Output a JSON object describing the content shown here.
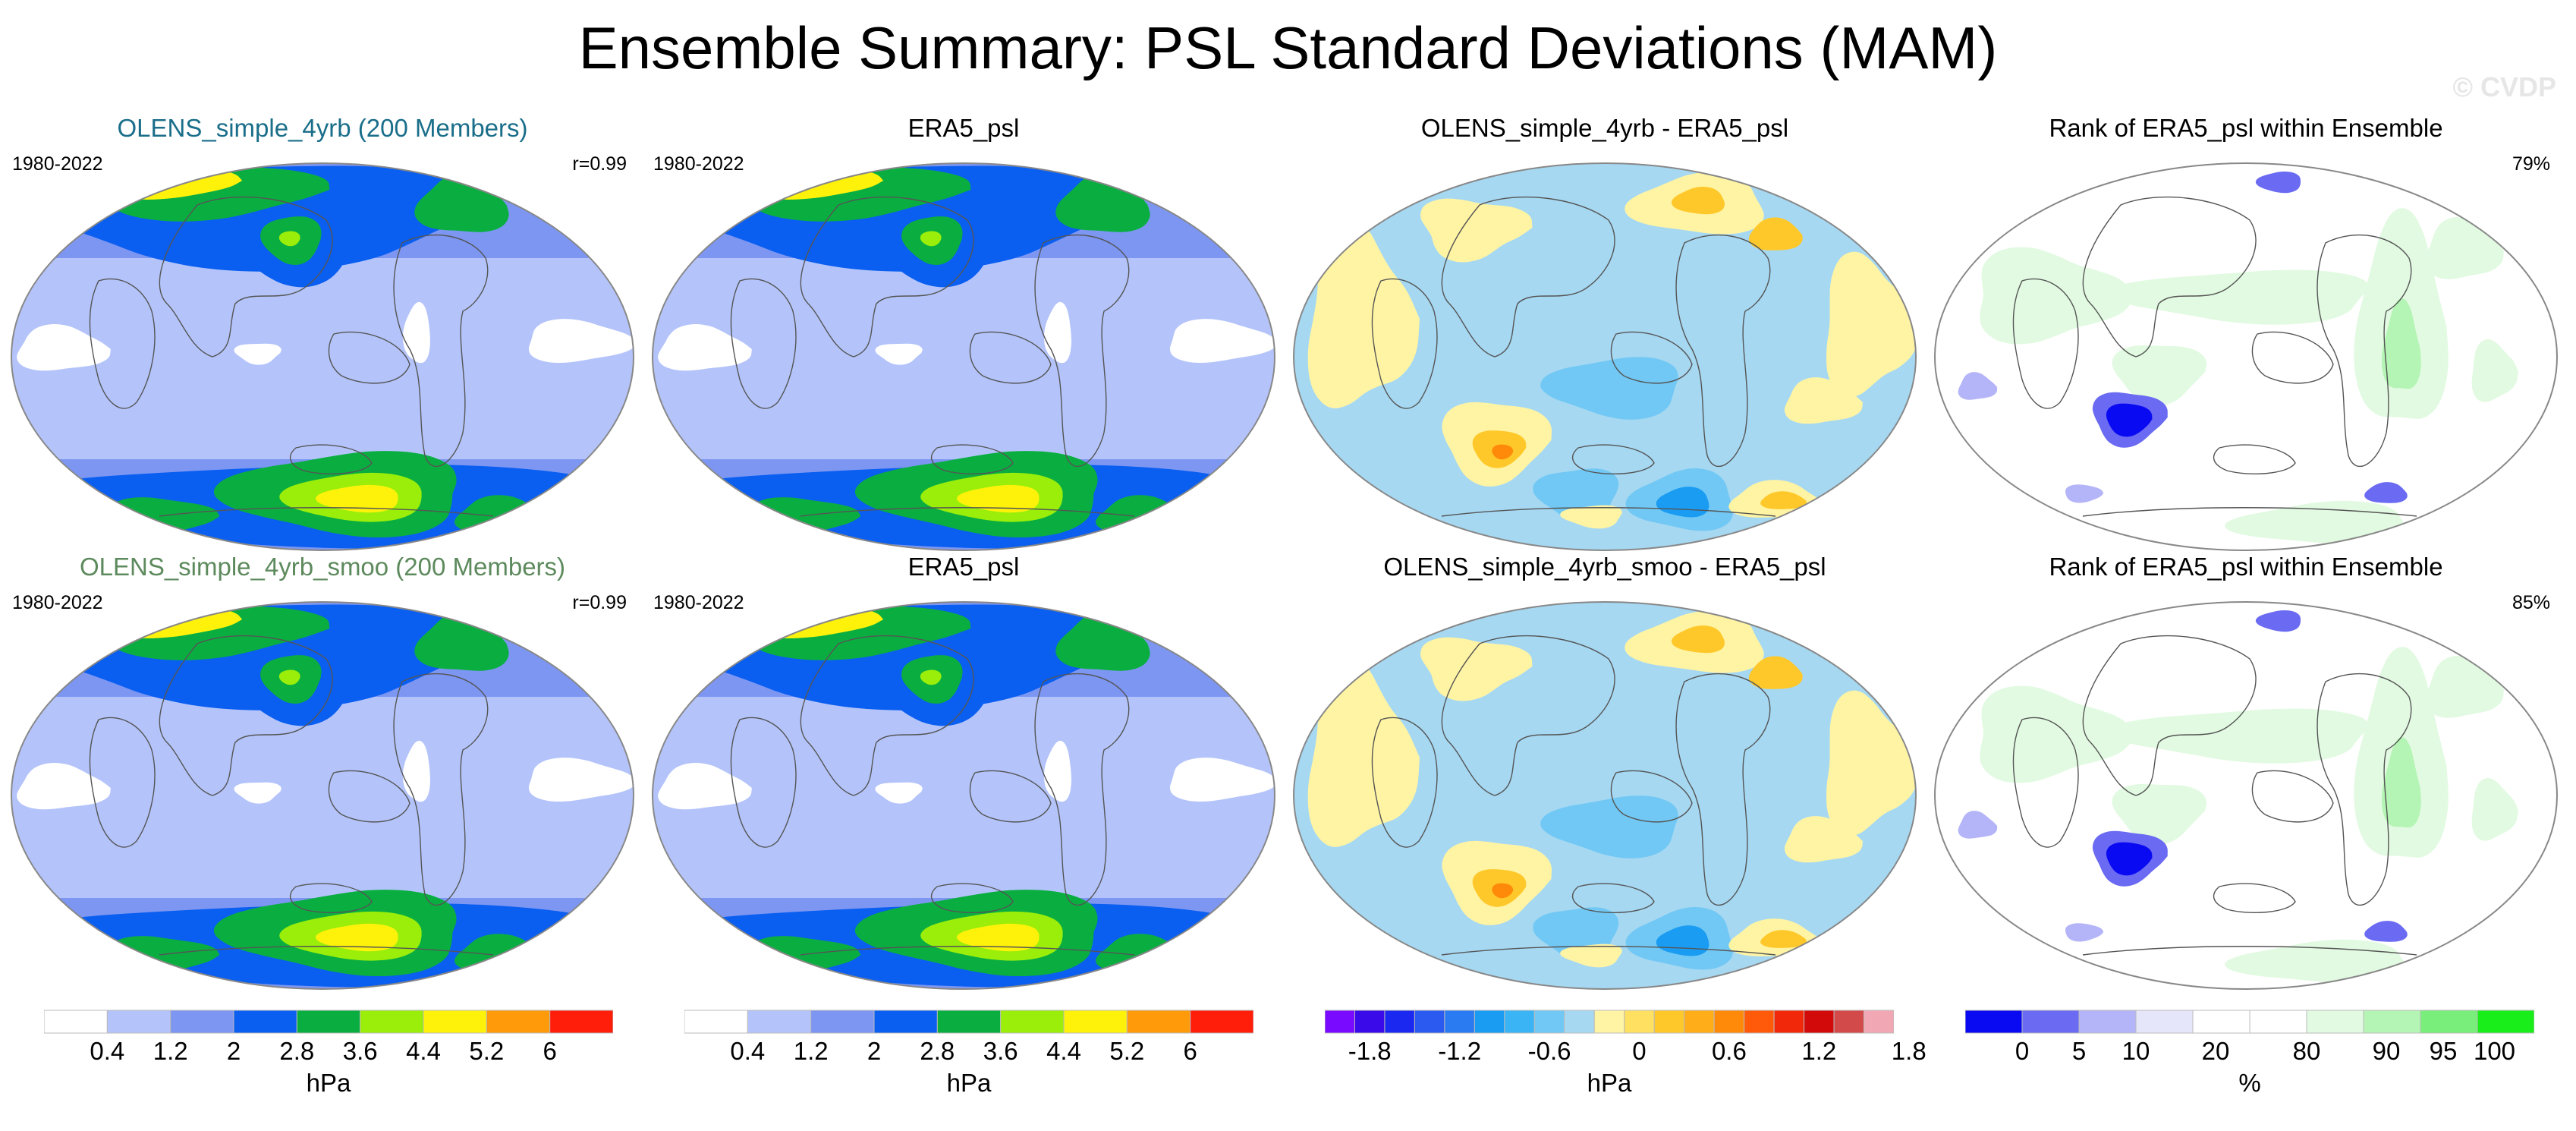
{
  "title": "Ensemble Summary: PSL Standard Deviations (MAM)",
  "copyright": "© CVDP",
  "rows": [
    {
      "panels": [
        {
          "title": "OLENS_simple_4yrb (200 Members)",
          "title_color": "#1a6e8a",
          "years": "1980-2022",
          "corner": "r=0.99",
          "kind": "std"
        },
        {
          "title": "ERA5_psl",
          "title_color": "#000000",
          "years": "1980-2022",
          "corner": "",
          "kind": "std"
        },
        {
          "title": "OLENS_simple_4yrb - ERA5_psl",
          "title_color": "#000000",
          "years": "",
          "corner": "",
          "kind": "diff"
        },
        {
          "title": "Rank of ERA5_psl within Ensemble",
          "title_color": "#000000",
          "years": "",
          "corner": "79%",
          "kind": "rank"
        }
      ]
    },
    {
      "panels": [
        {
          "title": "OLENS_simple_4yrb_smoo (200 Members)",
          "title_color": "#5d8a5d",
          "years": "1980-2022",
          "corner": "r=0.99",
          "kind": "std"
        },
        {
          "title": "ERA5_psl",
          "title_color": "#000000",
          "years": "1980-2022",
          "corner": "",
          "kind": "std"
        },
        {
          "title": "OLENS_simple_4yrb_smoo - ERA5_psl",
          "title_color": "#000000",
          "years": "",
          "corner": "",
          "kind": "diff"
        },
        {
          "title": "Rank of ERA5_psl within Ensemble",
          "title_color": "#000000",
          "years": "",
          "corner": "85%",
          "kind": "rank"
        }
      ]
    }
  ],
  "colorbars": [
    {
      "name": "std-colorbar-1",
      "unit": "hPa",
      "colors": [
        "#ffffff",
        "#b4c4fa",
        "#7c96f2",
        "#0a5ef0",
        "#0aae40",
        "#9aee0a",
        "#fff20a",
        "#ff9a0a",
        "#ff1e0a"
      ],
      "ticks": [
        "0.4",
        "1.2",
        "2",
        "2.8",
        "3.6",
        "4.4",
        "5.2",
        "6"
      ]
    },
    {
      "name": "std-colorbar-2",
      "unit": "hPa",
      "colors": [
        "#ffffff",
        "#b4c4fa",
        "#7c96f2",
        "#0a5ef0",
        "#0aae40",
        "#9aee0a",
        "#fff20a",
        "#ff9a0a",
        "#ff1e0a"
      ],
      "ticks": [
        "0.4",
        "1.2",
        "2",
        "2.8",
        "3.6",
        "4.4",
        "5.2",
        "6"
      ]
    },
    {
      "name": "diff-colorbar",
      "unit": "hPa",
      "colors": [
        "#7a0aff",
        "#3a0ae8",
        "#1a28f0",
        "#2a5af0",
        "#2a7af2",
        "#1a9cf2",
        "#3ab4f4",
        "#72c8f4",
        "#a6d8f2",
        "#fff4a4",
        "#ffe060",
        "#ffc82a",
        "#ffae1a",
        "#ff8a0a",
        "#ff5a0a",
        "#f2280a",
        "#d20a0a",
        "#d24a4a",
        "#f2a8b4"
      ],
      "ticks": [
        "-1.8",
        "-1.2",
        "-0.6",
        "0",
        "0.6",
        "1.2",
        "1.8"
      ]
    },
    {
      "name": "rank-colorbar",
      "unit": "%",
      "colors": [
        "#0a0af2",
        "#6a6af2",
        "#b4b4f8",
        "#e6e6fa",
        "#ffffff",
        "#ffffff",
        "#e2fae2",
        "#b4f4b4",
        "#7aee7a",
        "#1aee1a"
      ],
      "ticks": [
        "0",
        "5",
        "10",
        "20",
        "80",
        "90",
        "95",
        "100"
      ]
    }
  ]
}
